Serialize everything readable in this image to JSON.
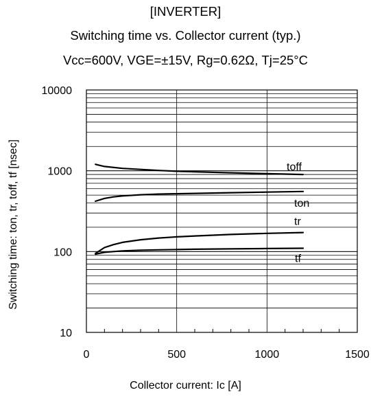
{
  "chart_data": {
    "type": "line",
    "title": "[INVERTER]",
    "subtitle": "Switching time vs. Collector current  (typ.)",
    "conditions": "Vcc=600V, VGE=±15V, Rg=0.62Ω, Tj=25°C",
    "xlabel": "Collector current: Ic [A]",
    "ylabel": "Switching time: ton, tr, toff, tf [nsec]",
    "xlim": [
      0,
      1500
    ],
    "ylim": [
      10,
      10000
    ],
    "yscale": "log",
    "grid": true,
    "x_ticks": [
      "0",
      "500",
      "1000",
      "1500"
    ],
    "y_ticks": [
      "10",
      "100",
      "1000",
      "10000"
    ],
    "series": [
      {
        "name": "toff",
        "x": [
          50,
          100,
          200,
          300,
          400,
          500,
          600,
          800,
          1000,
          1200
        ],
        "values": [
          1200,
          1130,
          1070,
          1040,
          1010,
          985,
          970,
          945,
          920,
          900
        ]
      },
      {
        "name": "ton",
        "x": [
          50,
          100,
          150,
          200,
          300,
          400,
          500,
          600,
          800,
          1000,
          1200
        ],
        "values": [
          420,
          455,
          475,
          488,
          505,
          515,
          520,
          525,
          535,
          545,
          555
        ]
      },
      {
        "name": "tr",
        "x": [
          50,
          100,
          150,
          200,
          300,
          400,
          500,
          600,
          800,
          1000,
          1200
        ],
        "values": [
          95,
          112,
          122,
          130,
          140,
          147,
          152,
          156,
          163,
          168,
          172
        ]
      },
      {
        "name": "tf",
        "x": [
          50,
          100,
          150,
          200,
          300,
          400,
          500,
          600,
          800,
          1000,
          1200
        ],
        "values": [
          93,
          98,
          100,
          102,
          104,
          105,
          106,
          107,
          108,
          109,
          110
        ]
      }
    ]
  }
}
